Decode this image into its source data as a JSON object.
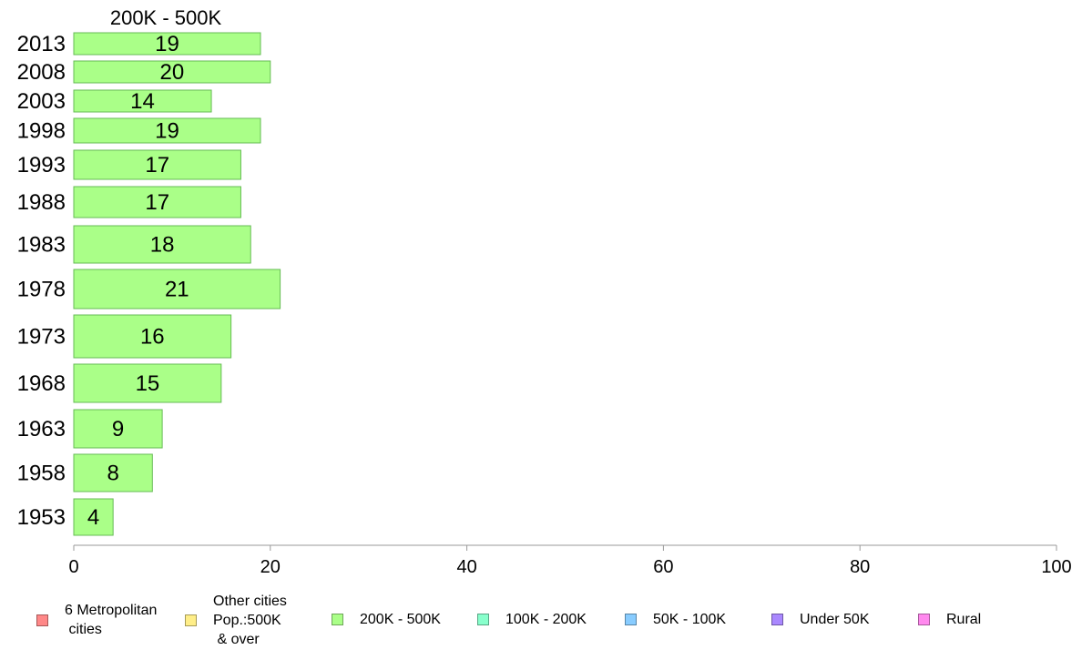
{
  "chart_data": {
    "type": "bar",
    "orientation": "horizontal",
    "title": "200K - 500K",
    "categories": [
      "2013",
      "2008",
      "2003",
      "1998",
      "1993",
      "1988",
      "1983",
      "1978",
      "1973",
      "1968",
      "1963",
      "1958",
      "1953"
    ],
    "values": [
      19,
      20,
      14,
      19,
      17,
      17,
      18,
      21,
      16,
      15,
      9,
      8,
      4
    ],
    "data_labels": [
      "19",
      "20",
      "14",
      "19",
      "17",
      "17",
      "18",
      "21",
      "16",
      "15",
      "9",
      "8",
      "4"
    ],
    "bar_color": "#aaff88",
    "bar_border_color": "#66bb55",
    "xlim": [
      0,
      100
    ],
    "xticks": [
      0,
      20,
      40,
      60,
      80,
      100
    ],
    "xlabel": "",
    "ylabel": "",
    "grid": false,
    "legend_position": "bottom",
    "legend": [
      {
        "label": "6 Metropolitan\n cities",
        "color": "#ff8888"
      },
      {
        "label": "Other cities\nPop.:500K\n & over",
        "color": "#ffee88"
      },
      {
        "label": "200K - 500K",
        "color": "#aaff88"
      },
      {
        "label": "100K - 200K",
        "color": "#88ffcc"
      },
      {
        "label": "50K - 100K",
        "color": "#88ccff"
      },
      {
        "label": "Under 50K",
        "color": "#aa88ff"
      },
      {
        "label": "Rural",
        "color": "#ff88ee"
      }
    ]
  }
}
